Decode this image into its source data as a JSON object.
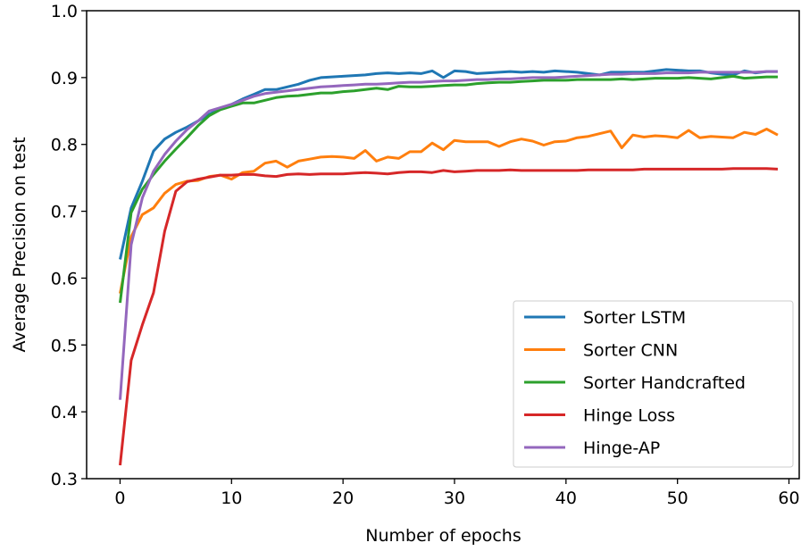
{
  "chart_data": {
    "type": "line",
    "title": "",
    "xlabel": "Number of epochs",
    "ylabel": "Average Precision on test",
    "xlim": [
      -3,
      61
    ],
    "ylim": [
      0.3,
      1.0
    ],
    "xticks": [
      0,
      10,
      20,
      30,
      40,
      50,
      60
    ],
    "xtick_labels": [
      "0",
      "10",
      "20",
      "30",
      "40",
      "50",
      "60"
    ],
    "yticks": [
      0.3,
      0.4,
      0.5,
      0.6,
      0.7,
      0.8,
      0.9,
      1.0
    ],
    "ytick_labels": [
      "0.3",
      "0.4",
      "0.5",
      "0.6",
      "0.7",
      "0.8",
      "0.9",
      "1.0"
    ],
    "grid": false,
    "legend_position": "bottom-right",
    "x": [
      0,
      1,
      2,
      3,
      4,
      5,
      6,
      7,
      8,
      9,
      10,
      11,
      12,
      13,
      14,
      15,
      16,
      17,
      18,
      19,
      20,
      21,
      22,
      23,
      24,
      25,
      26,
      27,
      28,
      29,
      30,
      31,
      32,
      33,
      34,
      35,
      36,
      37,
      38,
      39,
      40,
      41,
      42,
      43,
      44,
      45,
      46,
      47,
      48,
      49,
      50,
      51,
      52,
      53,
      54,
      55,
      56,
      57,
      58,
      59
    ],
    "series": [
      {
        "name": "Sorter LSTM",
        "color": "#1f77b4",
        "values": [
          0.628,
          0.705,
          0.745,
          0.79,
          0.808,
          0.818,
          0.826,
          0.835,
          0.845,
          0.853,
          0.86,
          0.868,
          0.875,
          0.882,
          0.882,
          0.886,
          0.89,
          0.896,
          0.9,
          0.901,
          0.902,
          0.903,
          0.904,
          0.906,
          0.907,
          0.906,
          0.907,
          0.906,
          0.91,
          0.9,
          0.91,
          0.909,
          0.906,
          0.907,
          0.908,
          0.909,
          0.908,
          0.909,
          0.908,
          0.91,
          0.909,
          0.908,
          0.906,
          0.904,
          0.908,
          0.908,
          0.908,
          0.908,
          0.91,
          0.912,
          0.911,
          0.91,
          0.91,
          0.907,
          0.905,
          0.904,
          0.91,
          0.907,
          0.909,
          0.909
        ]
      },
      {
        "name": "Sorter CNN",
        "color": "#ff7f0e",
        "values": [
          0.577,
          0.662,
          0.695,
          0.705,
          0.727,
          0.74,
          0.745,
          0.746,
          0.752,
          0.754,
          0.748,
          0.758,
          0.76,
          0.772,
          0.775,
          0.766,
          0.775,
          0.778,
          0.781,
          0.782,
          0.781,
          0.779,
          0.791,
          0.775,
          0.781,
          0.779,
          0.789,
          0.789,
          0.802,
          0.792,
          0.806,
          0.804,
          0.804,
          0.804,
          0.797,
          0.804,
          0.808,
          0.805,
          0.799,
          0.804,
          0.805,
          0.81,
          0.812,
          0.816,
          0.82,
          0.795,
          0.814,
          0.811,
          0.813,
          0.812,
          0.81,
          0.821,
          0.81,
          0.812,
          0.811,
          0.81,
          0.818,
          0.815,
          0.823,
          0.814
        ]
      },
      {
        "name": "Sorter Handcrafted",
        "color": "#2ca02c",
        "values": [
          0.563,
          0.698,
          0.733,
          0.755,
          0.775,
          0.793,
          0.81,
          0.828,
          0.843,
          0.852,
          0.857,
          0.862,
          0.862,
          0.866,
          0.87,
          0.872,
          0.873,
          0.875,
          0.877,
          0.877,
          0.879,
          0.88,
          0.882,
          0.884,
          0.882,
          0.887,
          0.886,
          0.886,
          0.887,
          0.888,
          0.889,
          0.889,
          0.891,
          0.892,
          0.893,
          0.893,
          0.894,
          0.895,
          0.896,
          0.896,
          0.896,
          0.897,
          0.897,
          0.897,
          0.897,
          0.898,
          0.897,
          0.898,
          0.899,
          0.899,
          0.899,
          0.9,
          0.899,
          0.898,
          0.9,
          0.902,
          0.899,
          0.9,
          0.901,
          0.901
        ]
      },
      {
        "name": "Hinge Loss",
        "color": "#d62728",
        "values": [
          0.32,
          0.477,
          0.53,
          0.578,
          0.67,
          0.73,
          0.744,
          0.748,
          0.751,
          0.754,
          0.754,
          0.755,
          0.755,
          0.753,
          0.752,
          0.755,
          0.756,
          0.755,
          0.756,
          0.756,
          0.756,
          0.757,
          0.758,
          0.757,
          0.756,
          0.758,
          0.759,
          0.759,
          0.758,
          0.761,
          0.759,
          0.76,
          0.761,
          0.761,
          0.761,
          0.762,
          0.761,
          0.761,
          0.761,
          0.761,
          0.761,
          0.761,
          0.762,
          0.762,
          0.762,
          0.762,
          0.762,
          0.763,
          0.763,
          0.763,
          0.763,
          0.763,
          0.763,
          0.763,
          0.763,
          0.764,
          0.764,
          0.764,
          0.764,
          0.763
        ]
      },
      {
        "name": "Hinge-AP",
        "color": "#9467bd",
        "values": [
          0.418,
          0.65,
          0.72,
          0.76,
          0.785,
          0.805,
          0.822,
          0.835,
          0.85,
          0.855,
          0.86,
          0.866,
          0.872,
          0.876,
          0.878,
          0.88,
          0.882,
          0.884,
          0.886,
          0.887,
          0.888,
          0.889,
          0.89,
          0.89,
          0.891,
          0.892,
          0.893,
          0.893,
          0.894,
          0.895,
          0.895,
          0.896,
          0.897,
          0.897,
          0.898,
          0.898,
          0.899,
          0.9,
          0.9,
          0.9,
          0.901,
          0.902,
          0.903,
          0.904,
          0.905,
          0.905,
          0.906,
          0.906,
          0.906,
          0.907,
          0.907,
          0.907,
          0.908,
          0.908,
          0.908,
          0.908,
          0.908,
          0.908,
          0.909,
          0.909
        ]
      }
    ]
  }
}
